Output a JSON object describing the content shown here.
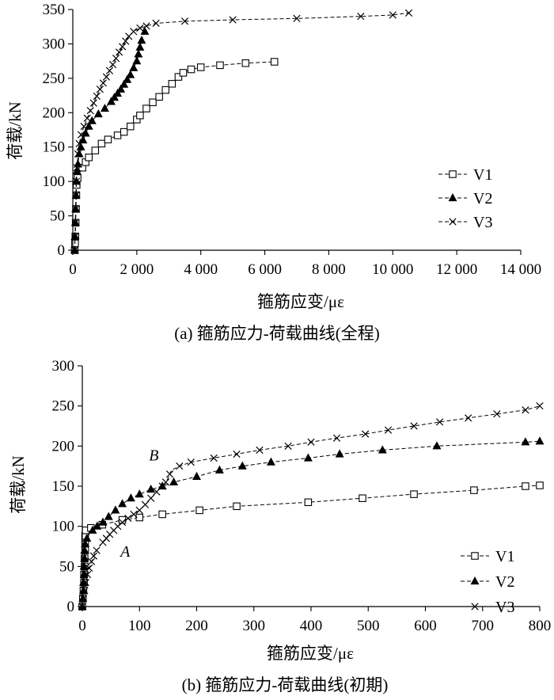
{
  "chart_data": [
    {
      "type": "line",
      "title": "(a) 箍筋应力-荷载曲线(全程)",
      "xlabel": "箍筋应变/με",
      "ylabel": "荷载/kN",
      "xlim": [
        0,
        14000
      ],
      "ylim": [
        0,
        350
      ],
      "xticks": [
        0,
        2000,
        4000,
        6000,
        8000,
        10000,
        12000,
        14000
      ],
      "xtick_labels": [
        "0",
        "2 000",
        "4 000",
        "6 000",
        "8 000",
        "10 000",
        "12 000",
        "14 000"
      ],
      "yticks": [
        0,
        50,
        100,
        150,
        200,
        250,
        300,
        350
      ],
      "ytick_labels": [
        "0",
        "50",
        "100",
        "150",
        "200",
        "250",
        "300",
        "350"
      ],
      "legend_position": "right",
      "series": [
        {
          "name": "V1",
          "marker": "square",
          "points": [
            [
              60,
              0
            ],
            [
              70,
              10
            ],
            [
              80,
              20
            ],
            [
              90,
              40
            ],
            [
              100,
              60
            ],
            [
              110,
              80
            ],
            [
              120,
              95
            ],
            [
              150,
              105
            ],
            [
              200,
              112
            ],
            [
              300,
              120
            ],
            [
              400,
              128
            ],
            [
              500,
              135
            ],
            [
              600,
              140
            ],
            [
              700,
              145
            ],
            [
              800,
              150
            ],
            [
              900,
              155
            ],
            [
              1000,
              158
            ],
            [
              1100,
              161
            ],
            [
              1200,
              163
            ],
            [
              1400,
              167
            ],
            [
              1600,
              172
            ],
            [
              1700,
              176
            ],
            [
              1800,
              180
            ],
            [
              1900,
              184
            ],
            [
              2000,
              190
            ],
            [
              2100,
              196
            ],
            [
              2200,
              201
            ],
            [
              2300,
              206
            ],
            [
              2400,
              210
            ],
            [
              2500,
              215
            ],
            [
              2600,
              219
            ],
            [
              2700,
              223
            ],
            [
              2800,
              228
            ],
            [
              2900,
              233
            ],
            [
              3000,
              238
            ],
            [
              3100,
              242
            ],
            [
              3200,
              247
            ],
            [
              3300,
              252
            ],
            [
              3450,
              258
            ],
            [
              3700,
              263
            ],
            [
              4000,
              266
            ],
            [
              4600,
              269
            ],
            [
              5400,
              272
            ],
            [
              6300,
              274
            ]
          ]
        },
        {
          "name": "V2",
          "marker": "triangle",
          "points": [
            [
              60,
              0
            ],
            [
              70,
              20
            ],
            [
              80,
              40
            ],
            [
              90,
              60
            ],
            [
              100,
              80
            ],
            [
              110,
              100
            ],
            [
              130,
              115
            ],
            [
              160,
              125
            ],
            [
              200,
              140
            ],
            [
              250,
              150
            ],
            [
              320,
              160
            ],
            [
              400,
              170
            ],
            [
              500,
              180
            ],
            [
              600,
              188
            ],
            [
              700,
              193
            ],
            [
              800,
              198
            ],
            [
              900,
              202
            ],
            [
              1000,
              206
            ],
            [
              1100,
              211
            ],
            [
              1200,
              216
            ],
            [
              1300,
              222
            ],
            [
              1400,
              228
            ],
            [
              1500,
              234
            ],
            [
              1600,
              241
            ],
            [
              1700,
              248
            ],
            [
              1800,
              255
            ],
            [
              1900,
              265
            ],
            [
              2000,
              275
            ],
            [
              2050,
              285
            ],
            [
              2100,
              295
            ],
            [
              2150,
              305
            ],
            [
              2200,
              312
            ],
            [
              2250,
              318
            ]
          ]
        },
        {
          "name": "V3",
          "marker": "x",
          "points": [
            [
              60,
              0
            ],
            [
              70,
              20
            ],
            [
              80,
              40
            ],
            [
              90,
              60
            ],
            [
              100,
              80
            ],
            [
              110,
              100
            ],
            [
              130,
              120
            ],
            [
              160,
              140
            ],
            [
              200,
              155
            ],
            [
              260,
              168
            ],
            [
              350,
              180
            ],
            [
              450,
              192
            ],
            [
              550,
              203
            ],
            [
              650,
              214
            ],
            [
              750,
              224
            ],
            [
              850,
              234
            ],
            [
              950,
              243
            ],
            [
              1050,
              252
            ],
            [
              1150,
              261
            ],
            [
              1250,
              270
            ],
            [
              1350,
              279
            ],
            [
              1450,
              288
            ],
            [
              1550,
              296
            ],
            [
              1650,
              304
            ],
            [
              1750,
              311
            ],
            [
              1900,
              318
            ],
            [
              2100,
              323
            ],
            [
              2300,
              326
            ],
            [
              2600,
              330
            ],
            [
              3500,
              333
            ],
            [
              5000,
              335
            ],
            [
              7000,
              337
            ],
            [
              9000,
              340
            ],
            [
              10000,
              342
            ],
            [
              10500,
              345
            ]
          ]
        }
      ]
    },
    {
      "type": "line",
      "title": "(b) 箍筋应力-荷载曲线(初期)",
      "xlabel": "箍筋应变/με",
      "ylabel": "荷载/kN",
      "xlim": [
        0,
        800
      ],
      "ylim": [
        0,
        300
      ],
      "xticks": [
        0,
        100,
        200,
        300,
        400,
        500,
        600,
        700,
        800
      ],
      "xtick_labels": [
        "0",
        "100",
        "200",
        "300",
        "400",
        "500",
        "600",
        "700",
        "800"
      ],
      "yticks": [
        0,
        50,
        100,
        150,
        200,
        250,
        300
      ],
      "ytick_labels": [
        "0",
        "50",
        "100",
        "150",
        "200",
        "250",
        "300"
      ],
      "legend_position": "bottom-right",
      "annotations": [
        {
          "text": "A",
          "x": 75,
          "y": 62
        },
        {
          "text": "B",
          "x": 125,
          "y": 182
        }
      ],
      "series": [
        {
          "name": "V1",
          "marker": "square",
          "points": [
            [
              0,
              0
            ],
            [
              1,
              10
            ],
            [
              2,
              20
            ],
            [
              3,
              30
            ],
            [
              3,
              40
            ],
            [
              4,
              50
            ],
            [
              4,
              60
            ],
            [
              5,
              70
            ],
            [
              5,
              80
            ],
            [
              5,
              88
            ],
            [
              6,
              95
            ],
            [
              15,
              98
            ],
            [
              35,
              102
            ],
            [
              70,
              108
            ],
            [
              100,
              111
            ],
            [
              140,
              115
            ],
            [
              205,
              120
            ],
            [
              270,
              125
            ],
            [
              395,
              130
            ],
            [
              490,
              135
            ],
            [
              580,
              140
            ],
            [
              685,
              145
            ],
            [
              775,
              150
            ],
            [
              800,
              151
            ]
          ]
        },
        {
          "name": "V2",
          "marker": "triangle",
          "points": [
            [
              0,
              0
            ],
            [
              1,
              10
            ],
            [
              2,
              20
            ],
            [
              2,
              30
            ],
            [
              3,
              40
            ],
            [
              3,
              50
            ],
            [
              4,
              60
            ],
            [
              4,
              70
            ],
            [
              5,
              78
            ],
            [
              8,
              85
            ],
            [
              12,
              90
            ],
            [
              18,
              95
            ],
            [
              26,
              100
            ],
            [
              36,
              105
            ],
            [
              46,
              112
            ],
            [
              58,
              120
            ],
            [
              70,
              128
            ],
            [
              85,
              135
            ],
            [
              100,
              140
            ],
            [
              120,
              146
            ],
            [
              140,
              150
            ],
            [
              160,
              155
            ],
            [
              200,
              162
            ],
            [
              240,
              170
            ],
            [
              280,
              175
            ],
            [
              330,
              180
            ],
            [
              395,
              185
            ],
            [
              450,
              190
            ],
            [
              525,
              195
            ],
            [
              620,
              200
            ],
            [
              775,
              205
            ],
            [
              800,
              206
            ]
          ]
        },
        {
          "name": "V3",
          "marker": "x",
          "points": [
            [
              0,
              0
            ],
            [
              2,
              10
            ],
            [
              4,
              20
            ],
            [
              6,
              30
            ],
            [
              9,
              40
            ],
            [
              12,
              48
            ],
            [
              16,
              56
            ],
            [
              20,
              63
            ],
            [
              25,
              70
            ],
            [
              30,
              75
            ],
            [
              36,
              80
            ],
            [
              42,
              85
            ],
            [
              48,
              90
            ],
            [
              55,
              95
            ],
            [
              62,
              100
            ],
            [
              70,
              105
            ],
            [
              80,
              110
            ],
            [
              90,
              115
            ],
            [
              100,
              120
            ],
            [
              110,
              127
            ],
            [
              120,
              135
            ],
            [
              130,
              143
            ],
            [
              140,
              150
            ],
            [
              146,
              155
            ],
            [
              150,
              160
            ],
            [
              153,
              165
            ],
            [
              156,
              170
            ],
            [
              170,
              175
            ],
            [
              190,
              180
            ],
            [
              230,
              185
            ],
            [
              270,
              190
            ],
            [
              310,
              195
            ],
            [
              360,
              200
            ],
            [
              400,
              205
            ],
            [
              445,
              210
            ],
            [
              495,
              215
            ],
            [
              535,
              220
            ],
            [
              580,
              225
            ],
            [
              625,
              230
            ],
            [
              675,
              235
            ],
            [
              725,
              240
            ],
            [
              775,
              245
            ],
            [
              800,
              250
            ]
          ]
        }
      ]
    }
  ]
}
